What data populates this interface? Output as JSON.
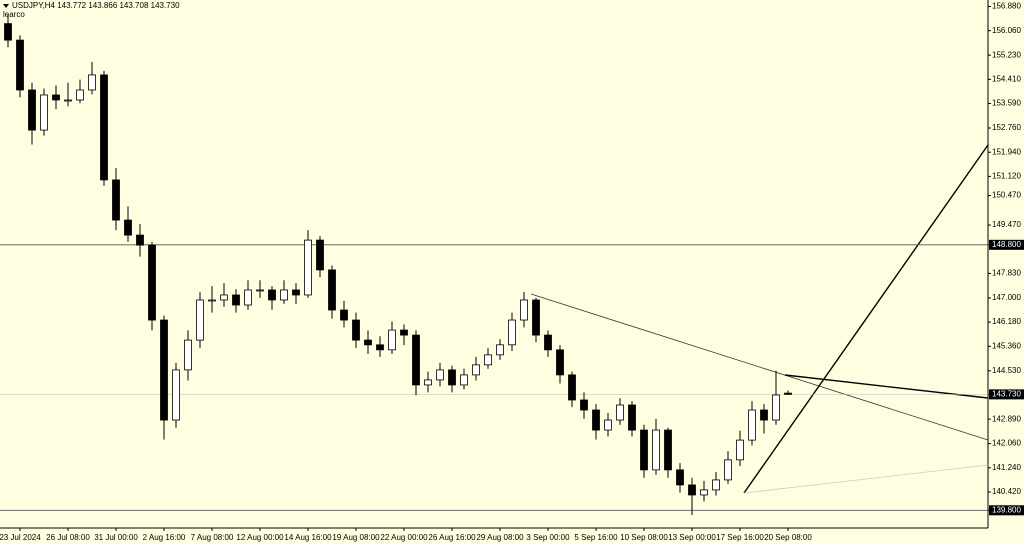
{
  "chart_data": {
    "type": "candlestick",
    "title": "USDJPY,H4 143.772 143.866 143.708 143.730",
    "subtitle": "learco",
    "categories": [
      null,
      "23 Jul 2024",
      null,
      null,
      null,
      "26 Jul 08:00",
      null,
      null,
      null,
      "31 Jul 00:00",
      null,
      null,
      null,
      "2 Aug 16:00",
      null,
      null,
      null,
      "7 Aug 08:00",
      null,
      null,
      null,
      "12 Aug 00:00",
      null,
      null,
      null,
      "14 Aug 16:00",
      null,
      null,
      null,
      "19 Aug 08:00",
      null,
      null,
      null,
      "22 Aug 00:00",
      null,
      null,
      null,
      "26 Aug 16:00",
      null,
      null,
      null,
      "29 Aug 08:00",
      null,
      null,
      null,
      "3 Sep 00:00",
      null,
      null,
      null,
      "5 Sep 16:00",
      null,
      null,
      null,
      "10 Sep 08:00",
      null,
      null,
      null,
      "13 Sep 00:00",
      null,
      null,
      null,
      "17 Sep 16:00",
      null,
      null,
      null,
      "20 Sep 08:00",
      null
    ],
    "ohlc": [
      [
        156.3,
        156.6,
        155.5,
        155.74
      ],
      [
        155.74,
        155.9,
        153.8,
        154.05
      ],
      [
        154.05,
        154.3,
        152.2,
        152.69
      ],
      [
        152.69,
        154.1,
        152.5,
        153.88
      ],
      [
        153.88,
        154.2,
        153.4,
        153.71
      ],
      [
        153.71,
        154.3,
        153.5,
        153.71
      ],
      [
        153.71,
        154.4,
        153.6,
        154.05
      ],
      [
        154.05,
        155.0,
        153.9,
        154.56
      ],
      [
        154.56,
        154.7,
        150.8,
        151.0
      ],
      [
        151.0,
        151.4,
        149.3,
        149.64
      ],
      [
        149.64,
        150.1,
        148.9,
        149.13
      ],
      [
        149.13,
        149.5,
        148.4,
        148.79
      ],
      [
        148.79,
        148.9,
        145.9,
        146.25
      ],
      [
        146.25,
        146.4,
        142.2,
        142.86
      ],
      [
        142.86,
        144.8,
        142.6,
        144.56
      ],
      [
        144.56,
        145.9,
        144.2,
        145.57
      ],
      [
        145.57,
        147.2,
        145.3,
        146.93
      ],
      [
        146.93,
        147.4,
        146.5,
        146.93
      ],
      [
        146.93,
        147.5,
        146.7,
        147.1
      ],
      [
        147.1,
        147.3,
        146.5,
        146.76
      ],
      [
        146.76,
        147.6,
        146.6,
        147.27
      ],
      [
        147.27,
        147.6,
        147.0,
        147.27
      ],
      [
        147.27,
        147.4,
        146.6,
        146.93
      ],
      [
        146.93,
        147.6,
        146.8,
        147.27
      ],
      [
        147.27,
        147.5,
        146.8,
        147.1
      ],
      [
        147.1,
        149.3,
        147.0,
        148.96
      ],
      [
        148.96,
        149.1,
        147.7,
        147.95
      ],
      [
        147.95,
        148.1,
        146.3,
        146.59
      ],
      [
        146.59,
        146.9,
        146.0,
        146.25
      ],
      [
        146.25,
        146.5,
        145.3,
        145.57
      ],
      [
        145.57,
        145.9,
        145.1,
        145.41
      ],
      [
        145.41,
        145.7,
        145.0,
        145.24
      ],
      [
        145.24,
        146.2,
        145.1,
        145.91
      ],
      [
        145.91,
        146.1,
        145.4,
        145.74
      ],
      [
        145.74,
        145.9,
        143.7,
        144.05
      ],
      [
        144.05,
        144.5,
        143.8,
        144.22
      ],
      [
        144.22,
        144.8,
        144.0,
        144.56
      ],
      [
        144.56,
        144.7,
        143.8,
        144.05
      ],
      [
        144.05,
        144.6,
        143.9,
        144.39
      ],
      [
        144.39,
        145.0,
        144.2,
        144.73
      ],
      [
        144.73,
        145.3,
        144.6,
        145.07
      ],
      [
        145.07,
        145.6,
        144.9,
        145.41
      ],
      [
        145.41,
        146.5,
        145.2,
        146.25
      ],
      [
        146.25,
        147.2,
        146.0,
        146.93
      ],
      [
        146.93,
        147.0,
        145.5,
        145.74
      ],
      [
        145.74,
        145.9,
        145.0,
        145.24
      ],
      [
        145.24,
        145.4,
        144.1,
        144.39
      ],
      [
        144.39,
        144.5,
        143.3,
        143.54
      ],
      [
        143.54,
        143.8,
        142.9,
        143.2
      ],
      [
        143.2,
        143.4,
        142.2,
        142.52
      ],
      [
        142.52,
        143.1,
        142.3,
        142.86
      ],
      [
        142.86,
        143.6,
        142.7,
        143.37
      ],
      [
        143.37,
        143.5,
        142.3,
        142.52
      ],
      [
        142.52,
        142.7,
        140.9,
        141.17
      ],
      [
        141.17,
        142.9,
        141.0,
        142.52
      ],
      [
        142.52,
        142.6,
        140.9,
        141.17
      ],
      [
        141.17,
        141.4,
        140.4,
        140.66
      ],
      [
        140.66,
        140.9,
        139.64,
        140.32
      ],
      [
        140.32,
        140.8,
        140.1,
        140.49
      ],
      [
        140.49,
        141.1,
        140.3,
        140.83
      ],
      [
        140.83,
        141.8,
        140.7,
        141.51
      ],
      [
        141.51,
        142.5,
        141.3,
        142.18
      ],
      [
        142.18,
        143.5,
        142.0,
        143.2
      ],
      [
        143.2,
        143.4,
        142.4,
        142.86
      ],
      [
        142.86,
        144.53,
        142.7,
        143.71
      ],
      [
        143.772,
        143.866,
        143.708,
        143.73
      ]
    ],
    "ylim": [
      139.2,
      157.1
    ],
    "yticks": [
      {
        "value": 156.88,
        "label": "156.880"
      },
      {
        "value": 156.06,
        "label": "156.060"
      },
      {
        "value": 155.23,
        "label": "155.230"
      },
      {
        "value": 154.41,
        "label": "154.410"
      },
      {
        "value": 153.59,
        "label": "153.590"
      },
      {
        "value": 152.76,
        "label": "152.760"
      },
      {
        "value": 151.94,
        "label": "151.940"
      },
      {
        "value": 151.12,
        "label": "151.120"
      },
      {
        "value": 150.47,
        "label": "150.470"
      },
      {
        "value": 149.47,
        "label": "149.470"
      },
      {
        "value": 148.8,
        "label": "148.800"
      },
      {
        "value": 147.83,
        "label": "147.830"
      },
      {
        "value": 147.0,
        "label": "147.000"
      },
      {
        "value": 146.18,
        "label": "146.180"
      },
      {
        "value": 145.36,
        "label": "145.360"
      },
      {
        "value": 144.53,
        "label": "144.530"
      },
      {
        "value": 143.73,
        "label": "143.730"
      },
      {
        "value": 142.89,
        "label": "142.890"
      },
      {
        "value": 142.06,
        "label": "142.060"
      },
      {
        "value": 141.24,
        "label": "141.240"
      },
      {
        "value": 140.42,
        "label": "140.420"
      },
      {
        "value": 139.8,
        "label": "139.800"
      }
    ],
    "levels": [
      148.8,
      139.8
    ],
    "color_up": "#ffffff",
    "color_down": "#000000"
  }
}
